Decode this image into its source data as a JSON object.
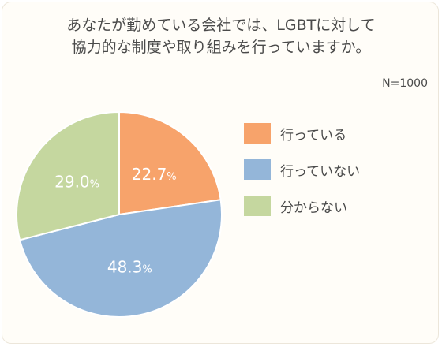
{
  "title_lines": [
    "あなたが勤めている会社では、LGBTに対して",
    "協力的な制度や取り組みを行っていますか。"
  ],
  "sample_size": "N=1000",
  "legend": [
    {
      "label": "行っている",
      "color": "#f7a36b"
    },
    {
      "label": "行っていない",
      "color": "#94b6d9"
    },
    {
      "label": "分からない",
      "color": "#c5d79f"
    }
  ],
  "chart_data": {
    "type": "pie",
    "title": "あなたが勤めている会社では、LGBTに対して協力的な制度や取り組みを行っていますか。",
    "slices": [
      {
        "label": "行っている",
        "value": 22.7,
        "display": "22.7%",
        "color": "#f7a36b"
      },
      {
        "label": "行っていない",
        "value": 48.3,
        "display": "48.3%",
        "color": "#94b6d9"
      },
      {
        "label": "分からない",
        "value": 29.0,
        "display": "29.0%",
        "color": "#c5d79f"
      }
    ],
    "legend_position": "right"
  }
}
